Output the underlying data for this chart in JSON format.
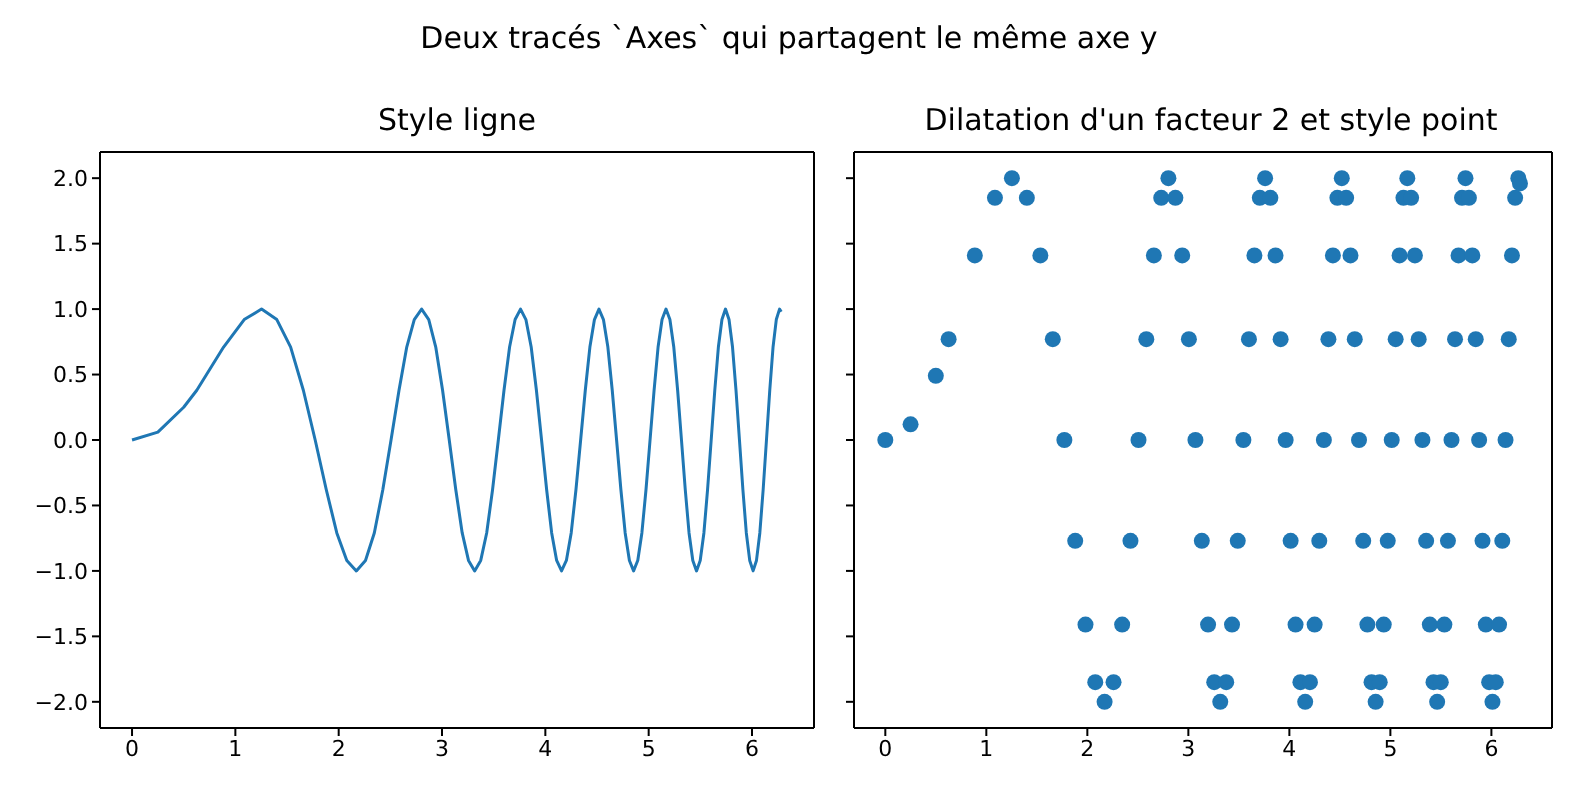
{
  "chart_data": [
    {
      "type": "line",
      "title": "Style ligne",
      "annotations": [
        "Deux tracés `Axes` qui partagent le même axe y"
      ],
      "x": [
        0,
        0.25,
        0.5,
        0.6267,
        0.8862,
        1.0854,
        1.2533,
        1.4012,
        1.535,
        1.658,
        1.7725,
        1.88,
        1.9817,
        2.0784,
        2.1708,
        2.2594,
        2.3447,
        2.427,
        2.5066,
        2.5838,
        2.6587,
        2.7315,
        2.8025,
        2.8717,
        2.9393,
        3.0054,
        3.07,
        3.1333,
        3.1953,
        3.2562,
        3.316,
        3.3747,
        3.4323,
        3.4891,
        3.5449,
        3.5999,
        3.654,
        3.7074,
        3.7599,
        3.8118,
        3.863,
        3.9135,
        3.9633,
        4.0126,
        4.0612,
        4.1093,
        4.1568,
        4.2037,
        4.2502,
        4.2962,
        4.3416,
        4.3866,
        4.4311,
        4.4752,
        4.5189,
        4.5622,
        4.605,
        4.6474,
        4.6895,
        4.7312,
        4.7725,
        4.8135,
        4.8541,
        4.8944,
        4.9343,
        4.974,
        5.0133,
        5.0523,
        5.091,
        5.1294,
        5.1676,
        5.2054,
        5.243,
        5.2803,
        5.3174,
        5.3542,
        5.3907,
        5.427,
        5.4631,
        5.4989,
        5.5345,
        5.5699,
        5.605,
        5.6399,
        5.6746,
        5.7091,
        5.7434,
        5.7775,
        5.8114,
        5.8451,
        5.8786,
        5.9119,
        5.945,
        5.9779,
        6.0107,
        6.0433,
        6.0757,
        6.1079,
        6.14,
        6.1719,
        6.2036,
        6.2352,
        6.2666,
        6.2832
      ],
      "series": [
        {
          "color": "#1f77b4",
          "values": [
            0,
            0.06,
            0.25,
            0.38,
            0.71,
            0.92,
            1,
            0.92,
            0.71,
            0.38,
            0,
            -0.38,
            -0.71,
            -0.92,
            -1,
            -0.92,
            -0.71,
            -0.38,
            0,
            0.38,
            0.71,
            0.92,
            1,
            0.92,
            0.71,
            0.38,
            0,
            -0.38,
            -0.71,
            -0.92,
            -1,
            -0.92,
            -0.71,
            -0.38,
            0,
            0.38,
            0.71,
            0.92,
            1,
            0.92,
            0.71,
            0.38,
            0,
            -0.38,
            -0.71,
            -0.92,
            -1,
            -0.92,
            -0.71,
            -0.38,
            0,
            0.38,
            0.71,
            0.92,
            1,
            0.92,
            0.71,
            0.38,
            0,
            -0.38,
            -0.71,
            -0.92,
            -1,
            -0.92,
            -0.71,
            -0.38,
            0,
            0.38,
            0.71,
            0.92,
            1,
            0.92,
            0.71,
            0.38,
            0,
            -0.38,
            -0.71,
            -0.92,
            -1,
            -0.92,
            -0.71,
            -0.38,
            0,
            0.38,
            0.71,
            0.92,
            1,
            0.92,
            0.71,
            0.38,
            0,
            -0.38,
            -0.71,
            -0.92,
            -1,
            -0.92,
            -0.71,
            -0.38,
            0,
            0.38,
            0.71,
            0.92,
            1,
            0.98
          ]
        }
      ],
      "xlim": [
        -0.31,
        6.6
      ],
      "xticks": [
        0,
        1,
        2,
        3,
        4,
        5,
        6
      ],
      "ylim": [
        -2.2,
        2.2
      ],
      "yticks": [
        {
          "value": -2,
          "label": "−2.0"
        },
        {
          "value": -1.5,
          "label": "−1.5"
        },
        {
          "value": -1,
          "label": "−1.0"
        },
        {
          "value": -0.5,
          "label": "−0.5"
        },
        {
          "value": 0,
          "label": "0.0"
        },
        {
          "value": 0.5,
          "label": "0.5"
        },
        {
          "value": 1,
          "label": "1.0"
        },
        {
          "value": 1.5,
          "label": "1.5"
        },
        {
          "value": 2,
          "label": "2.0"
        }
      ]
    },
    {
      "type": "scatter",
      "title": "Dilatation d'un facteur 2 et style point",
      "marker": "circle",
      "tick_labels": "x",
      "x": [
        0,
        0.25,
        0.5,
        0.6267,
        0.8862,
        1.0854,
        1.2533,
        1.4012,
        1.535,
        1.658,
        1.7725,
        1.88,
        1.9817,
        2.0784,
        2.1708,
        2.2594,
        2.3447,
        2.427,
        2.5066,
        2.5838,
        2.6587,
        2.7315,
        2.8025,
        2.8717,
        2.9393,
        3.0054,
        3.07,
        3.1333,
        3.1953,
        3.2562,
        3.316,
        3.3747,
        3.4323,
        3.4891,
        3.5449,
        3.5999,
        3.654,
        3.7074,
        3.7599,
        3.8118,
        3.863,
        3.9135,
        3.9633,
        4.0126,
        4.0612,
        4.1093,
        4.1568,
        4.2037,
        4.2502,
        4.2962,
        4.3416,
        4.3866,
        4.4311,
        4.4752,
        4.5189,
        4.5622,
        4.605,
        4.6474,
        4.6895,
        4.7312,
        4.7725,
        4.8135,
        4.8541,
        4.8944,
        4.9343,
        4.974,
        5.0133,
        5.0523,
        5.091,
        5.1294,
        5.1676,
        5.2054,
        5.243,
        5.2803,
        5.3174,
        5.3542,
        5.3907,
        5.427,
        5.4631,
        5.4989,
        5.5345,
        5.5699,
        5.605,
        5.6399,
        5.6746,
        5.7091,
        5.7434,
        5.7775,
        5.8114,
        5.8451,
        5.8786,
        5.9119,
        5.945,
        5.9779,
        6.0107,
        6.0433,
        6.0757,
        6.1079,
        6.14,
        6.1719,
        6.2036,
        6.2352,
        6.2666,
        6.2832
      ],
      "series": [
        {
          "color": "#1f77b4",
          "values": [
            0,
            0.12,
            0.49,
            0.77,
            1.41,
            1.85,
            2,
            1.85,
            1.41,
            0.77,
            0,
            -0.77,
            -1.41,
            -1.85,
            -2,
            -1.85,
            -1.41,
            -0.77,
            0,
            0.77,
            1.41,
            1.85,
            2,
            1.85,
            1.41,
            0.77,
            0,
            -0.77,
            -1.41,
            -1.85,
            -2,
            -1.85,
            -1.41,
            -0.77,
            0,
            0.77,
            1.41,
            1.85,
            2,
            1.85,
            1.41,
            0.77,
            0,
            -0.77,
            -1.41,
            -1.85,
            -2,
            -1.85,
            -1.41,
            -0.77,
            0,
            0.77,
            1.41,
            1.85,
            2,
            1.85,
            1.41,
            0.77,
            0,
            -0.77,
            -1.41,
            -1.85,
            -2,
            -1.85,
            -1.41,
            -0.77,
            0,
            0.77,
            1.41,
            1.85,
            2,
            1.85,
            1.41,
            0.77,
            0,
            -0.77,
            -1.41,
            -1.85,
            -2,
            -1.85,
            -1.41,
            -0.77,
            0,
            0.77,
            1.41,
            1.85,
            2,
            1.85,
            1.41,
            0.77,
            0,
            -0.77,
            -1.41,
            -1.85,
            -2,
            -1.85,
            -1.41,
            -0.77,
            0,
            0.77,
            1.41,
            1.85,
            2,
            1.96
          ]
        }
      ],
      "xlim": [
        -0.31,
        6.6
      ],
      "xticks": [
        0,
        1,
        2,
        3,
        4,
        5,
        6
      ],
      "ylim": [
        -2.2,
        2.2
      ],
      "yticks": [
        {
          "value": -2,
          "label": null
        },
        {
          "value": -1.5,
          "label": null
        },
        {
          "value": -1,
          "label": null
        },
        {
          "value": -0.5,
          "label": null
        },
        {
          "value": 0,
          "label": null
        },
        {
          "value": 0.5,
          "label": null
        },
        {
          "value": 1,
          "label": null
        },
        {
          "value": 1.5,
          "label": null
        },
        {
          "value": 2,
          "label": null
        }
      ]
    }
  ]
}
